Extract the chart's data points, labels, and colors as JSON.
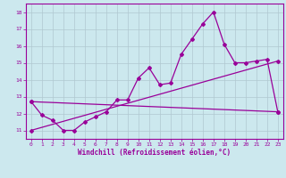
{
  "xlabel": "Windchill (Refroidissement éolien,°C)",
  "background_color": "#cce8ee",
  "grid_color": "#b0c8d0",
  "line_color": "#990099",
  "ylim": [
    10.5,
    18.5
  ],
  "xlim": [
    -0.5,
    23.5
  ],
  "yticks": [
    11,
    12,
    13,
    14,
    15,
    16,
    17,
    18
  ],
  "xticks": [
    0,
    1,
    2,
    3,
    4,
    5,
    6,
    7,
    8,
    9,
    10,
    11,
    12,
    13,
    14,
    15,
    16,
    17,
    18,
    19,
    20,
    21,
    22,
    23
  ],
  "x": [
    0,
    1,
    2,
    3,
    4,
    5,
    6,
    7,
    8,
    9,
    10,
    11,
    12,
    13,
    14,
    15,
    16,
    17,
    18,
    19,
    20,
    21,
    22,
    23
  ],
  "line1": [
    12.7,
    11.9,
    11.6,
    11.0,
    11.0,
    11.5,
    11.8,
    12.1,
    12.8,
    12.8,
    14.1,
    14.7,
    13.7,
    13.8,
    15.5,
    16.4,
    17.3,
    18.0,
    16.1,
    15.0,
    15.0,
    15.1,
    15.2,
    12.1
  ],
  "trend1_x": [
    0,
    23
  ],
  "trend1_y": [
    12.7,
    12.1
  ],
  "trend2_x": [
    0,
    23
  ],
  "trend2_y": [
    11.0,
    15.1
  ]
}
